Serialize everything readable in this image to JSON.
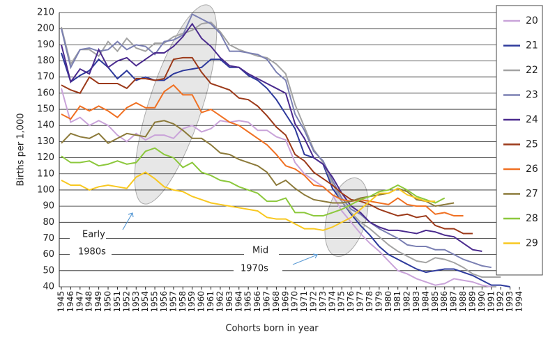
{
  "chart_data": {
    "type": "line",
    "y_label": "Births per 1,000",
    "x_label": "Cohorts born in year",
    "annotations": [
      "Early",
      "1980s",
      "Mid",
      "1970s"
    ],
    "x": [
      1945,
      1946,
      1947,
      1948,
      1949,
      1950,
      1951,
      1952,
      1953,
      1954,
      1955,
      1956,
      1957,
      1958,
      1959,
      1960,
      1961,
      1962,
      1963,
      1964,
      1965,
      1966,
      1967,
      1968,
      1969,
      1970,
      1971,
      1972,
      1973,
      1974,
      1975,
      1976,
      1977,
      1978,
      1979,
      1980,
      1981,
      1982,
      1983,
      1984,
      1985,
      1986,
      1987,
      1988,
      1989,
      1990,
      1991,
      1992,
      1993,
      1994
    ],
    "xlim": [
      1945,
      1994
    ],
    "ylim": [
      40,
      210
    ],
    "yticks": [
      40,
      50,
      60,
      70,
      80,
      90,
      100,
      110,
      120,
      130,
      140,
      150,
      160,
      170,
      180,
      190,
      200,
      210
    ],
    "grid": true,
    "legend": "right",
    "series": [
      {
        "name": "20",
        "color": "#c9a3d9",
        "values": [
          163,
          142,
          145,
          140,
          143,
          140,
          134,
          130,
          135,
          131,
          134,
          134,
          132,
          138,
          140,
          136,
          138,
          143,
          142,
          143,
          142,
          137,
          137,
          133,
          131,
          117,
          110,
          106,
          102,
          97,
          87,
          80,
          73,
          67,
          62,
          56,
          50,
          48,
          45,
          43,
          41,
          42,
          45,
          44,
          43,
          41,
          40,
          null,
          null,
          null
        ]
      },
      {
        "name": "21",
        "color": "#2e3a9c",
        "values": [
          185,
          167,
          171,
          174,
          181,
          176,
          169,
          174,
          168,
          170,
          168,
          168,
          172,
          174,
          175,
          176,
          181,
          181,
          176,
          176,
          171,
          168,
          163,
          156,
          147,
          138,
          122,
          120,
          116,
          101,
          93,
          85,
          78,
          72,
          65,
          60,
          57,
          54,
          51,
          49,
          50,
          51,
          51,
          49,
          47,
          44,
          41,
          41,
          40,
          null
        ]
      },
      {
        "name": "22",
        "color": "#a3a3a3",
        "values": [
          201,
          178,
          187,
          187,
          183,
          192,
          186,
          194,
          188,
          186,
          191,
          191,
          195,
          197,
          199,
          203,
          204,
          198,
          190,
          187,
          185,
          183,
          182,
          178,
          172,
          153,
          139,
          125,
          117,
          104,
          93,
          86,
          80,
          76,
          71,
          66,
          62,
          59,
          56,
          55,
          58,
          57,
          55,
          52,
          48,
          46,
          46,
          46,
          null,
          null
        ]
      },
      {
        "name": "23",
        "color": "#7b80b3",
        "values": [
          200,
          176,
          187,
          188,
          186,
          187,
          192,
          187,
          190,
          189,
          184,
          192,
          193,
          196,
          209,
          206,
          203,
          197,
          186,
          186,
          185,
          184,
          181,
          173,
          168,
          147,
          137,
          124,
          118,
          106,
          95,
          88,
          85,
          80,
          76,
          73,
          70,
          66,
          65,
          65,
          63,
          63,
          60,
          57,
          55,
          53,
          52,
          null,
          null,
          null
        ]
      },
      {
        "name": "24",
        "color": "#4a2a8e",
        "values": [
          190,
          167,
          175,
          172,
          187,
          176,
          180,
          182,
          177,
          181,
          185,
          185,
          189,
          195,
          203,
          194,
          189,
          182,
          177,
          176,
          172,
          169,
          166,
          163,
          160,
          141,
          132,
          120,
          116,
          108,
          98,
          90,
          86,
          80,
          77,
          75,
          75,
          74,
          73,
          75,
          74,
          72,
          71,
          67,
          63,
          62,
          null,
          null,
          null,
          null
        ]
      },
      {
        "name": "25",
        "color": "#9c3a1a",
        "values": [
          165,
          162,
          160,
          170,
          166,
          166,
          166,
          163,
          169,
          169,
          168,
          169,
          181,
          182,
          182,
          173,
          166,
          164,
          162,
          157,
          156,
          152,
          146,
          139,
          134,
          122,
          118,
          111,
          107,
          103,
          98,
          94,
          93,
          91,
          88,
          86,
          84,
          85,
          83,
          84,
          78,
          76,
          76,
          73,
          73,
          null,
          null,
          null,
          null,
          null
        ]
      },
      {
        "name": "26",
        "color": "#f07022",
        "values": [
          147,
          144,
          152,
          149,
          152,
          149,
          145,
          151,
          154,
          151,
          151,
          161,
          165,
          159,
          159,
          148,
          150,
          146,
          142,
          140,
          136,
          132,
          128,
          122,
          115,
          113,
          109,
          103,
          102,
          97,
          94,
          93,
          94,
          93,
          92,
          91,
          95,
          91,
          90,
          90,
          85,
          86,
          84,
          84,
          null,
          null,
          null,
          null,
          null,
          null
        ]
      },
      {
        "name": "27",
        "color": "#8c7a3a",
        "values": [
          129,
          135,
          133,
          132,
          135,
          129,
          132,
          135,
          134,
          133,
          142,
          143,
          141,
          137,
          132,
          132,
          128,
          123,
          122,
          119,
          117,
          115,
          111,
          103,
          106,
          101,
          97,
          94,
          93,
          92,
          92,
          93,
          95,
          96,
          97,
          98,
          101,
          99,
          94,
          93,
          90,
          91,
          92,
          null,
          null,
          null,
          null,
          null,
          null,
          null
        ]
      },
      {
        "name": "28",
        "color": "#8cc83c",
        "values": [
          121,
          117,
          117,
          118,
          115,
          116,
          118,
          116,
          117,
          124,
          126,
          122,
          120,
          114,
          117,
          111,
          109,
          106,
          105,
          102,
          100,
          98,
          93,
          93,
          95,
          86,
          86,
          84,
          84,
          86,
          88,
          91,
          94,
          96,
          99,
          100,
          103,
          100,
          96,
          94,
          92,
          95,
          null,
          null,
          null,
          null,
          null,
          null,
          null,
          null
        ]
      },
      {
        "name": "29",
        "color": "#f8c820",
        "values": [
          106,
          103,
          103,
          100,
          102,
          103,
          102,
          101,
          108,
          111,
          107,
          102,
          100,
          99,
          96,
          94,
          92,
          91,
          90,
          89,
          88,
          87,
          83,
          82,
          82,
          79,
          76,
          76,
          75,
          77,
          80,
          83,
          88,
          93,
          98,
          98,
          101,
          97,
          95,
          93,
          93,
          null,
          null,
          null,
          null,
          null,
          null,
          null,
          null,
          null
        ]
      }
    ]
  }
}
